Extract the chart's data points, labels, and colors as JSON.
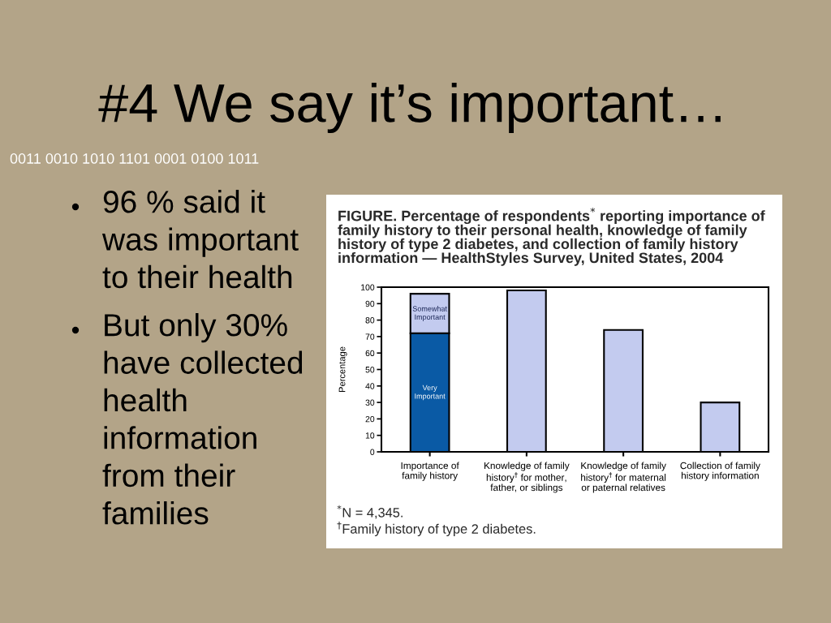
{
  "chart_data": {
    "type": "bar",
    "title": "#4 We say it’s important…",
    "subtitle": "FIGURE. Percentage of respondents$^{*}$ reporting importance of\nfamily history to their personal health, knowledge of family\nhistory of type 2 diabetes, and collection of family history\ninformation — HealthStyles Survey, United States, 2004",
    "categories": [
      "Importance of\nfamily history",
      "Knowledge of family\nhistory$^{†}$ for mother,\nfather, or siblings",
      "Knowledge of family\nhistory$^{†}$ for maternal\nor paternal relatives",
      "Collection of family\nhistory information"
    ],
    "series": [
      {
        "name": "Very\nImportant",
        "color": "#0a5aa5",
        "values": [
          72,
          null,
          null,
          null
        ]
      },
      {
        "name": "Somewhat\nImportant",
        "color": "#c3cbef",
        "values": [
          24,
          null,
          null,
          null
        ]
      },
      {
        "color": "#c3cbef",
        "values": [
          null,
          98,
          74,
          30
        ]
      }
    ],
    "stacked": true,
    "ylim": [
      0,
      100
    ],
    "yticks": [
      0,
      10,
      20,
      30,
      40,
      50,
      60,
      70,
      80,
      90,
      100
    ],
    "ylabel": "Percentage",
    "annotations": [
      "0011 0010 1010 1101 0001 0100 1011",
      "96 % said it\nwas important\nto their health",
      "But only 30%\nhave collected\nhealth\ninformation\nfrom their\nfamilies",
      "$^{*}$N = 4,345.",
      "$^{†}$Family history of type 2 diabetes."
    ]
  }
}
